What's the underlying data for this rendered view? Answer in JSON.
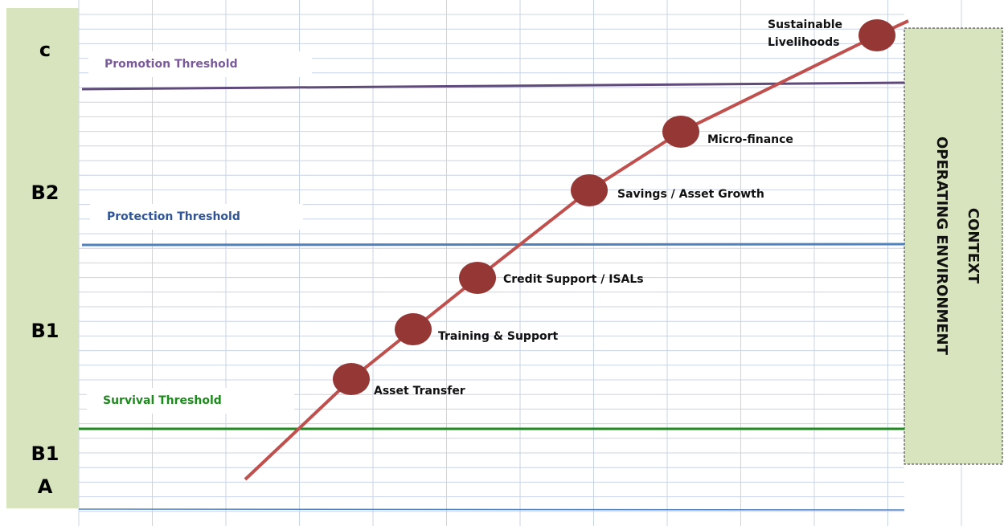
{
  "levels": [
    {
      "lines": [
        "c"
      ]
    },
    {
      "lines": [
        "B2"
      ]
    },
    {
      "lines": [
        "B1"
      ]
    },
    {
      "lines": [
        "B1",
        "A"
      ]
    }
  ],
  "thresholds": [
    {
      "label": "Promotion Threshold"
    },
    {
      "label": "Protection Threshold"
    },
    {
      "label": "Survival Threshold"
    }
  ],
  "nodes": [
    {
      "label": "Asset Transfer"
    },
    {
      "label": "Training & Support"
    },
    {
      "label": "Credit Support / ISALs"
    },
    {
      "label": "Savings / Asset Growth"
    },
    {
      "label": "Micro-finance"
    },
    {
      "lines": [
        "Sustainable",
        "Livelihoods"
      ]
    }
  ],
  "side_box": {
    "lines": [
      "CONTEXT",
      "OPERATING ENVIRONMENT"
    ]
  }
}
